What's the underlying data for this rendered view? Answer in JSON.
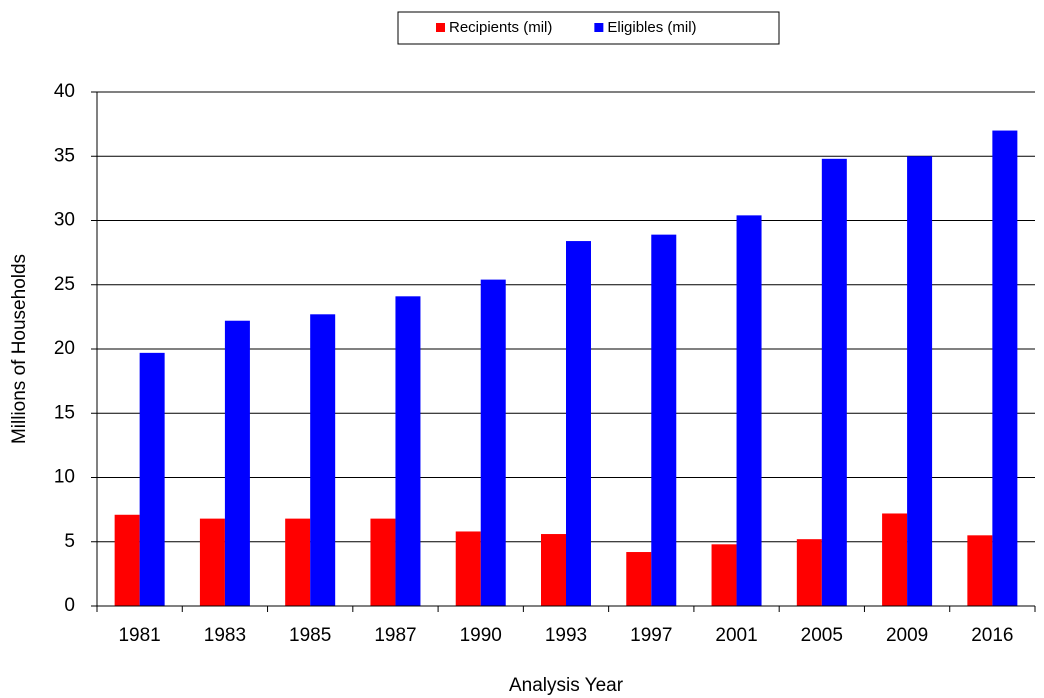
{
  "chart_data": {
    "type": "bar",
    "x_label": "Analysis Year",
    "y_label": "Millions of Households",
    "categories": [
      "1981",
      "1983",
      "1985",
      "1987",
      "1990",
      "1993",
      "1997",
      "2001",
      "2005",
      "2009",
      "2016"
    ],
    "series": [
      {
        "name": "Recipients (mil)",
        "color": "#ff0000",
        "values": [
          7.1,
          6.8,
          6.8,
          6.8,
          5.8,
          5.6,
          4.2,
          4.8,
          5.2,
          7.2,
          5.5
        ]
      },
      {
        "name": "Eligibles (mil)",
        "color": "#0000ff",
        "values": [
          19.7,
          22.2,
          22.7,
          24.1,
          25.4,
          28.4,
          28.9,
          30.4,
          34.8,
          35.0,
          37.0
        ]
      }
    ],
    "ylim": [
      0,
      40
    ],
    "yticks": [
      0,
      5,
      10,
      15,
      20,
      25,
      30,
      35,
      40
    ],
    "grid": true,
    "legend": "top"
  }
}
